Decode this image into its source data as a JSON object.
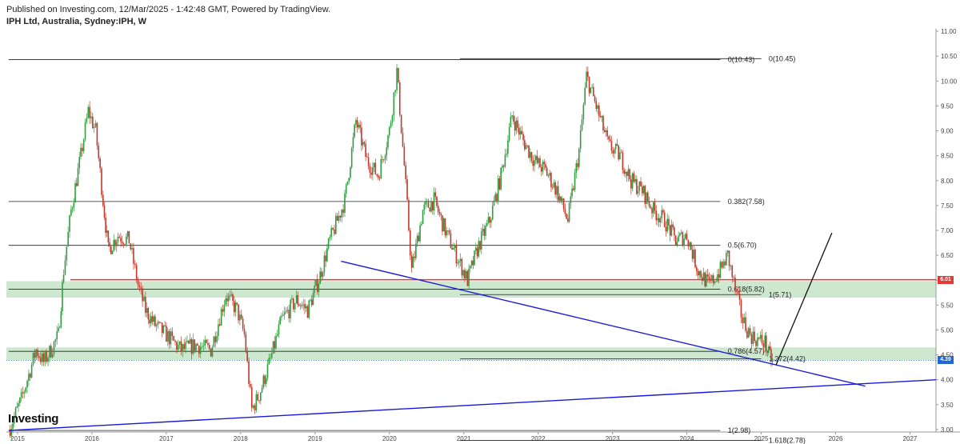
{
  "header": {
    "published": "Published on Investing.com, 12/Mar/2025 - 1:42:48 GMT, Powered by TradingView.",
    "symbol": "IPH Ltd, Australia, Sydney:IPH, W"
  },
  "logo": "Investing",
  "colors": {
    "up": "#2e9e3e",
    "down": "#c0392b",
    "trendline": "#1a1adb",
    "resistance": "#e53935",
    "zone": "#a5d6a7",
    "fib": "#222222",
    "last_price_tag": "#1e66d0",
    "resistance_tag": "#e53935"
  },
  "chart_data": {
    "type": "candlestick",
    "title": "IPH Ltd, Australia, Sydney:IPH, W",
    "x_ticks": [
      "2015",
      "2016",
      "2017",
      "2018",
      "2019",
      "2020",
      "2021",
      "2022",
      "2023",
      "2024",
      "2025",
      "2026",
      "2027"
    ],
    "y_ticks": [
      "3.00",
      "3.50",
      "4.00",
      "4.50",
      "5.00",
      "5.50",
      "6.00",
      "6.50",
      "7.00",
      "7.50",
      "8.00",
      "8.50",
      "9.00",
      "9.50",
      "10.00",
      "10.50",
      "11.00"
    ],
    "ylim": [
      2.95,
      11.05
    ],
    "xlim": [
      2014.85,
      2027.35
    ],
    "last_price": 4.39,
    "last_price_label": "4.39",
    "resistance_level": 6.01,
    "resistance_label": "6.01",
    "close_series": [
      {
        "x": 2014.88,
        "y": 2.98
      },
      {
        "x": 2015.05,
        "y": 3.6
      },
      {
        "x": 2015.15,
        "y": 4.1
      },
      {
        "x": 2015.25,
        "y": 4.6
      },
      {
        "x": 2015.35,
        "y": 4.35
      },
      {
        "x": 2015.45,
        "y": 4.6
      },
      {
        "x": 2015.55,
        "y": 4.9
      },
      {
        "x": 2015.62,
        "y": 6.2
      },
      {
        "x": 2015.72,
        "y": 7.4
      },
      {
        "x": 2015.85,
        "y": 8.5
      },
      {
        "x": 2015.95,
        "y": 9.4
      },
      {
        "x": 2016.05,
        "y": 9.0
      },
      {
        "x": 2016.15,
        "y": 7.6
      },
      {
        "x": 2016.22,
        "y": 6.6
      },
      {
        "x": 2016.35,
        "y": 6.9
      },
      {
        "x": 2016.5,
        "y": 6.8
      },
      {
        "x": 2016.62,
        "y": 5.9
      },
      {
        "x": 2016.72,
        "y": 5.4
      },
      {
        "x": 2016.85,
        "y": 5.1
      },
      {
        "x": 2017.0,
        "y": 4.9
      },
      {
        "x": 2017.2,
        "y": 4.6
      },
      {
        "x": 2017.4,
        "y": 4.7
      },
      {
        "x": 2017.6,
        "y": 4.6
      },
      {
        "x": 2017.8,
        "y": 5.7
      },
      {
        "x": 2017.95,
        "y": 5.4
      },
      {
        "x": 2018.05,
        "y": 4.9
      },
      {
        "x": 2018.15,
        "y": 3.4
      },
      {
        "x": 2018.25,
        "y": 3.7
      },
      {
        "x": 2018.4,
        "y": 4.4
      },
      {
        "x": 2018.55,
        "y": 5.2
      },
      {
        "x": 2018.75,
        "y": 5.6
      },
      {
        "x": 2018.9,
        "y": 5.4
      },
      {
        "x": 2019.05,
        "y": 6.0
      },
      {
        "x": 2019.2,
        "y": 6.8
      },
      {
        "x": 2019.4,
        "y": 7.6
      },
      {
        "x": 2019.55,
        "y": 9.2
      },
      {
        "x": 2019.7,
        "y": 8.4
      },
      {
        "x": 2019.85,
        "y": 8.1
      },
      {
        "x": 2020.0,
        "y": 9.0
      },
      {
        "x": 2020.1,
        "y": 10.2
      },
      {
        "x": 2020.2,
        "y": 8.3
      },
      {
        "x": 2020.3,
        "y": 6.2
      },
      {
        "x": 2020.45,
        "y": 7.4
      },
      {
        "x": 2020.6,
        "y": 7.6
      },
      {
        "x": 2020.75,
        "y": 7.0
      },
      {
        "x": 2020.9,
        "y": 6.5
      },
      {
        "x": 2021.05,
        "y": 6.0
      },
      {
        "x": 2021.2,
        "y": 6.7
      },
      {
        "x": 2021.35,
        "y": 7.2
      },
      {
        "x": 2021.5,
        "y": 8.1
      },
      {
        "x": 2021.65,
        "y": 9.3
      },
      {
        "x": 2021.8,
        "y": 8.8
      },
      {
        "x": 2021.95,
        "y": 8.4
      },
      {
        "x": 2022.1,
        "y": 8.2
      },
      {
        "x": 2022.25,
        "y": 7.8
      },
      {
        "x": 2022.4,
        "y": 7.2
      },
      {
        "x": 2022.55,
        "y": 8.6
      },
      {
        "x": 2022.65,
        "y": 10.1
      },
      {
        "x": 2022.8,
        "y": 9.4
      },
      {
        "x": 2022.95,
        "y": 8.7
      },
      {
        "x": 2023.1,
        "y": 8.5
      },
      {
        "x": 2023.25,
        "y": 8.0
      },
      {
        "x": 2023.4,
        "y": 7.8
      },
      {
        "x": 2023.55,
        "y": 7.4
      },
      {
        "x": 2023.7,
        "y": 7.2
      },
      {
        "x": 2023.85,
        "y": 6.8
      },
      {
        "x": 2024.0,
        "y": 6.9
      },
      {
        "x": 2024.15,
        "y": 6.2
      },
      {
        "x": 2024.3,
        "y": 5.9
      },
      {
        "x": 2024.45,
        "y": 6.2
      },
      {
        "x": 2024.55,
        "y": 6.5
      },
      {
        "x": 2024.65,
        "y": 5.8
      },
      {
        "x": 2024.75,
        "y": 5.2
      },
      {
        "x": 2024.85,
        "y": 4.9
      },
      {
        "x": 2024.95,
        "y": 4.8
      },
      {
        "x": 2025.05,
        "y": 4.75
      },
      {
        "x": 2025.1,
        "y": 4.5
      },
      {
        "x": 2025.15,
        "y": 4.39
      }
    ],
    "fib_levels": [
      {
        "label": "0(10.43)",
        "y": 10.43,
        "x_start": 2014.88,
        "x_end": 2024.45,
        "label_x": 2024.55
      },
      {
        "label": "0(10.45)",
        "y": 10.45,
        "x_start": 2020.95,
        "x_end": 2025.0,
        "label_x": 2025.1
      },
      {
        "label": "0.382(7.58)",
        "y": 7.58,
        "x_start": 2014.88,
        "x_end": 2024.45,
        "label_x": 2024.55
      },
      {
        "label": "0.5(6.70)",
        "y": 6.7,
        "x_start": 2014.88,
        "x_end": 2024.45,
        "label_x": 2024.55
      },
      {
        "label": "0.618(5.82)",
        "y": 5.82,
        "x_start": 2014.88,
        "x_end": 2024.45,
        "label_x": 2024.55
      },
      {
        "label": "1(5.71)",
        "y": 5.71,
        "x_start": 2020.95,
        "x_end": 2025.0,
        "label_x": 2025.1
      },
      {
        "label": "0.786(4.57)",
        "y": 4.57,
        "x_start": 2014.88,
        "x_end": 2024.45,
        "label_x": 2024.55
      },
      {
        "label": "1.272(4.42)",
        "y": 4.42,
        "x_start": 2020.95,
        "x_end": 2025.0,
        "label_x": 2025.1
      },
      {
        "label": "1(2.98)",
        "y": 2.98,
        "x_start": 2014.88,
        "x_end": 2024.45,
        "label_x": 2024.55
      },
      {
        "label": "1.618(2.78)",
        "y": 2.78,
        "x_start": 2020.95,
        "x_end": 2025.0,
        "label_x": 2025.1
      }
    ],
    "zones": [
      {
        "y_low": 5.65,
        "y_high": 5.98,
        "x_start": 2014.85,
        "x_end": 2027.35
      },
      {
        "y_low": 4.39,
        "y_high": 4.65,
        "x_start": 2014.85,
        "x_end": 2027.35
      }
    ],
    "trendlines": [
      {
        "x1": 2014.88,
        "y1": 2.98,
        "x2": 2027.35,
        "y2": 4.0
      },
      {
        "x1": 2019.35,
        "y1": 6.38,
        "x2": 2026.4,
        "y2": 3.87
      }
    ],
    "projection": {
      "x1": 2025.2,
      "y1": 4.3,
      "x2": 2025.95,
      "y2": 6.95
    }
  }
}
